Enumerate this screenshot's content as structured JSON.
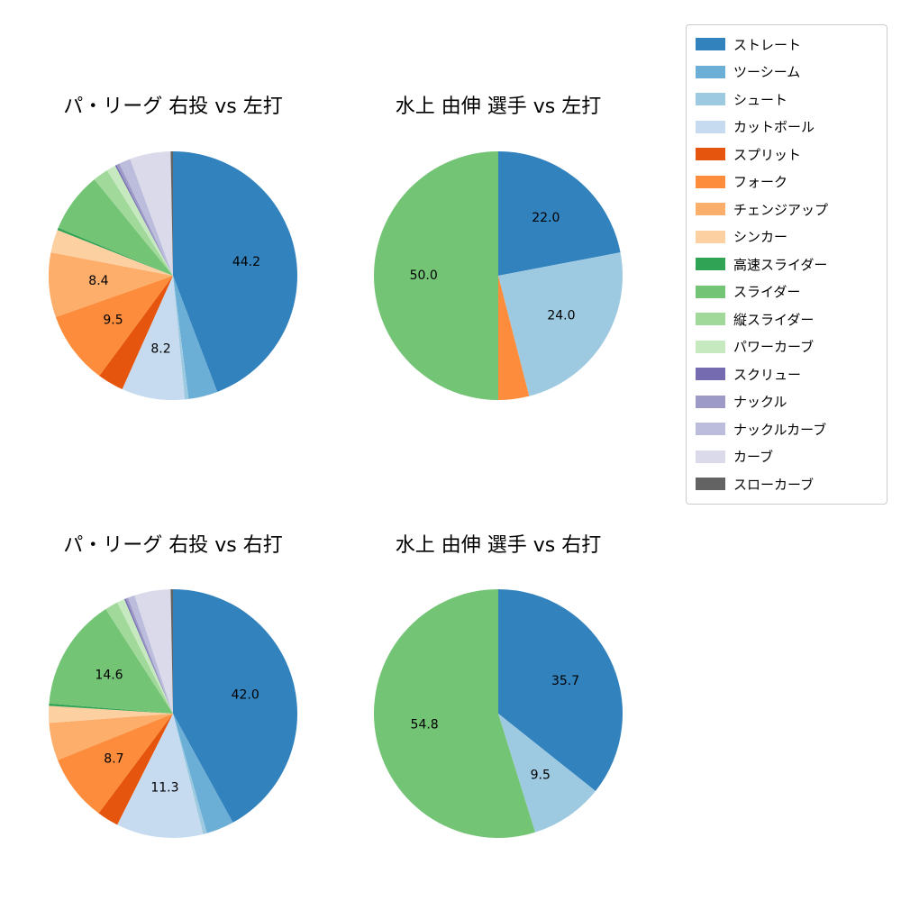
{
  "page": {
    "background": "#ffffff"
  },
  "chart_data": {
    "type": "pie",
    "start_angle": "top",
    "direction": "clockwise",
    "label_threshold_pct": 8,
    "label_format": "one_decimal_percent_value",
    "legend": {
      "position": "upper right",
      "items": [
        {
          "label": "ストレート",
          "color": "#3182bd"
        },
        {
          "label": "ツーシーム",
          "color": "#6baed6"
        },
        {
          "label": "シュート",
          "color": "#9ecae1"
        },
        {
          "label": "カットボール",
          "color": "#c6dbef"
        },
        {
          "label": "スプリット",
          "color": "#e6550d"
        },
        {
          "label": "フォーク",
          "color": "#fd8d3c"
        },
        {
          "label": "チェンジアップ",
          "color": "#fdae6b"
        },
        {
          "label": "シンカー",
          "color": "#fdd0a2"
        },
        {
          "label": "高速スライダー",
          "color": "#31a354"
        },
        {
          "label": "スライダー",
          "color": "#74c476"
        },
        {
          "label": "縦スライダー",
          "color": "#a1d99b"
        },
        {
          "label": "パワーカーブ",
          "color": "#c7e9c0"
        },
        {
          "label": "スクリュー",
          "color": "#756bb1"
        },
        {
          "label": "ナックル",
          "color": "#9e9ac8"
        },
        {
          "label": "ナックルカーブ",
          "color": "#bcbddc"
        },
        {
          "label": "カーブ",
          "color": "#dadaeb"
        },
        {
          "label": "スローカーブ",
          "color": "#636363"
        }
      ]
    },
    "charts": [
      {
        "title": "パ・リーグ 右投 vs 左打",
        "labeled_slices_note": "values >= 8 show numeric labels; visible labels: 44.2, 8.2, 9.5, 8.4",
        "slices": [
          {
            "label": "ストレート",
            "value": 44.2
          },
          {
            "label": "ツーシーム",
            "value": 3.8
          },
          {
            "label": "シュート",
            "value": 0.5
          },
          {
            "label": "カットボール",
            "value": 8.2
          },
          {
            "label": "スプリット",
            "value": 3.4
          },
          {
            "label": "フォーク",
            "value": 9.5
          },
          {
            "label": "チェンジアップ",
            "value": 8.4
          },
          {
            "label": "シンカー",
            "value": 3.0
          },
          {
            "label": "高速スライダー",
            "value": 0.3
          },
          {
            "label": "スライダー",
            "value": 7.8
          },
          {
            "label": "縦スライダー",
            "value": 2.0
          },
          {
            "label": "パワーカーブ",
            "value": 1.2
          },
          {
            "label": "スクリュー",
            "value": 0.2
          },
          {
            "label": "ナックル",
            "value": 0.4
          },
          {
            "label": "ナックルカーブ",
            "value": 1.5
          },
          {
            "label": "カーブ",
            "value": 5.3
          },
          {
            "label": "スローカーブ",
            "value": 0.3
          }
        ]
      },
      {
        "title": "水上 由伸 選手 vs 左打",
        "labeled_slices_note": "visible labels: 22.0, 24.0, 50.0",
        "slices": [
          {
            "label": "ストレート",
            "value": 22.0
          },
          {
            "label": "シュート",
            "value": 24.0
          },
          {
            "label": "フォーク",
            "value": 4.0
          },
          {
            "label": "スライダー",
            "value": 50.0
          }
        ]
      },
      {
        "title": "パ・リーグ 右投 vs 右打",
        "labeled_slices_note": "visible labels: 42.0, 11.3, 8.7, 14.6",
        "slices": [
          {
            "label": "ストレート",
            "value": 42.0
          },
          {
            "label": "ツーシーム",
            "value": 3.6
          },
          {
            "label": "シュート",
            "value": 0.5
          },
          {
            "label": "カットボール",
            "value": 11.3
          },
          {
            "label": "スプリット",
            "value": 2.8
          },
          {
            "label": "フォーク",
            "value": 8.7
          },
          {
            "label": "チェンジアップ",
            "value": 4.9
          },
          {
            "label": "シンカー",
            "value": 2.2
          },
          {
            "label": "高速スライダー",
            "value": 0.3
          },
          {
            "label": "スライダー",
            "value": 14.6
          },
          {
            "label": "縦スライダー",
            "value": 1.7
          },
          {
            "label": "パワーカーブ",
            "value": 1.0
          },
          {
            "label": "スクリュー",
            "value": 0.2
          },
          {
            "label": "ナックル",
            "value": 0.3
          },
          {
            "label": "ナックルカーブ",
            "value": 0.9
          },
          {
            "label": "カーブ",
            "value": 4.7
          },
          {
            "label": "スローカーブ",
            "value": 0.3
          }
        ]
      },
      {
        "title": "水上 由伸 選手 vs 右打",
        "labeled_slices_note": "visible labels: 35.7, 9.5, 54.8",
        "slices": [
          {
            "label": "ストレート",
            "value": 35.7
          },
          {
            "label": "シュート",
            "value": 9.5
          },
          {
            "label": "スライダー",
            "value": 54.8
          }
        ]
      }
    ]
  }
}
